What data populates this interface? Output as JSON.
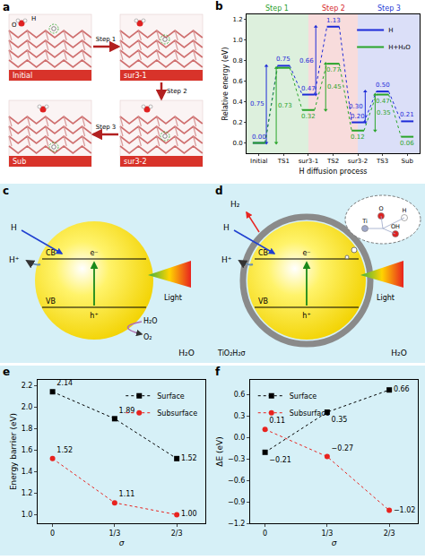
{
  "chart_data": [
    {
      "panel": "b",
      "type": "line",
      "categories": [
        "Initial",
        "TS1",
        "sur3-1",
        "TS2",
        "sur3-2",
        "TS3",
        "Sub"
      ],
      "xlabel": "H diffusion process",
      "ylabel": "Relative energy (eV)",
      "ylim": [
        -0.1,
        1.25
      ],
      "yticks": [
        {
          "value": 0,
          "label": "0.0"
        },
        0.2,
        0.4,
        0.6,
        0.8,
        {
          "value": 1,
          "label": "1.0"
        },
        1.2
      ],
      "grid": false,
      "legend": "top right",
      "data_labels": true,
      "steps": [
        {
          "label": "Step 1",
          "from": "Initial",
          "to": "sur3-1",
          "color": "#2ca02c"
        },
        {
          "label": "Step 2",
          "from": "sur3-1",
          "to": "sur3-2",
          "color": "#d62728"
        },
        {
          "label": "Step 3",
          "from": "sur3-2",
          "to": "Sub",
          "color": "#1f3bd6"
        }
      ],
      "series": [
        {
          "name": "H",
          "color": "#1d2bd8",
          "values": [
            0,
            0.75,
            0.47,
            1.13,
            0.2,
            0.5,
            0.21
          ],
          "value_labels": [
            "0.00",
            "0.75",
            "0.47",
            "1.13",
            "0.20",
            "0.50",
            "0.21"
          ],
          "barriers": [
            {
              "from": "Initial",
              "to": "TS1",
              "value": 0.75,
              "label": "0.75"
            },
            {
              "from": "sur3-1",
              "to": "TS2",
              "value": 0.66,
              "label": "0.66"
            },
            {
              "from": "sur3-2",
              "to": "TS3",
              "value": 0.3,
              "label": "0.30"
            }
          ]
        },
        {
          "name": "H+H₂O",
          "color": "#2aa52a",
          "values": [
            0,
            0.73,
            0.32,
            0.77,
            0.12,
            0.47,
            0.06
          ],
          "value_labels": [
            null,
            null,
            "0.32",
            "0.77",
            "0.12",
            "0.47",
            "0.06"
          ],
          "barriers": [
            {
              "from": "Initial",
              "to": "TS1",
              "value": 0.73,
              "label": "0.73"
            },
            {
              "from": "sur3-1",
              "to": "TS2",
              "value": 0.45,
              "label": "0.45"
            },
            {
              "from": "sur3-2",
              "to": "TS3",
              "value": 0.35,
              "label": "0.35"
            }
          ]
        }
      ]
    },
    {
      "panel": "e",
      "type": "line",
      "x": [
        0,
        0.3333,
        0.6667
      ],
      "xlabel": "σ",
      "ylabel": "Energy barrier (eV)",
      "xlim": [
        -0.08,
        0.82
      ],
      "xticks": [
        0,
        {
          "value": 0.3333,
          "label": "1/3"
        },
        {
          "value": 0.6667,
          "label": "2/3"
        }
      ],
      "ylim": [
        0.92,
        2.25
      ],
      "yticks": [
        {
          "value": 1,
          "label": "1.0"
        },
        1.2,
        1.4,
        1.6,
        1.8,
        {
          "value": 2,
          "label": "2.0"
        },
        2.2
      ],
      "grid": false,
      "legend": "top right",
      "data_labels": true,
      "series": [
        {
          "name": "Surface",
          "color": "#000000",
          "marker": "square",
          "line_style": "dot",
          "values": [
            2.14,
            1.89,
            1.52
          ],
          "value_labels": [
            "2.14",
            "1.89",
            "1.52"
          ]
        },
        {
          "name": "Subsurface",
          "color": "#e8231f",
          "marker": "circle",
          "line_style": "dot",
          "values": [
            1.52,
            1.11,
            1.0
          ],
          "value_labels": [
            "1.52",
            "1.11",
            "1.00"
          ]
        }
      ]
    },
    {
      "panel": "f",
      "type": "line",
      "x": [
        0,
        0.3333,
        0.6667
      ],
      "xlabel": "σ",
      "ylabel": "ΔE (eV)",
      "xlim": [
        -0.08,
        0.82
      ],
      "xticks": [
        0,
        {
          "value": 0.3333,
          "label": "1/3"
        },
        {
          "value": 0.6667,
          "label": "2/3"
        }
      ],
      "ylim": [
        -1.2,
        0.8
      ],
      "yticks": [
        {
          "value": -1.2,
          "label": "−1.2"
        },
        {
          "value": -0.9,
          "label": "−0.9"
        },
        {
          "value": -0.6,
          "label": "−0.6"
        },
        {
          "value": -0.3,
          "label": "−0.3"
        },
        {
          "value": 0,
          "label": "0.0"
        },
        0.3,
        0.6
      ],
      "grid": false,
      "legend": "top left",
      "data_labels": true,
      "series": [
        {
          "name": "Surface",
          "color": "#000000",
          "marker": "square",
          "line_style": "dot",
          "values": [
            -0.21,
            0.35,
            0.66
          ],
          "value_labels": [
            "−0.21",
            "0.35",
            "0.66"
          ]
        },
        {
          "name": "Subsurface",
          "color": "#e8231f",
          "marker": "circle",
          "line_style": "dot",
          "values": [
            0.11,
            -0.27,
            -1.02
          ],
          "value_labels": [
            "0.11",
            "−0.27",
            "−1.02"
          ]
        }
      ]
    }
  ],
  "diagrams": {
    "a": {
      "letter": "a",
      "states": [
        "Initial",
        "sur3-1",
        "sur3-2",
        "Sub"
      ],
      "steps": [
        "Step 1",
        "Step 2",
        "Step 3"
      ],
      "atoms": [
        "O",
        "H"
      ]
    },
    "c": {
      "letter": "c",
      "bands": [
        "CB",
        "VB"
      ],
      "electron": "e⁻",
      "hole": "h⁺",
      "reactant_top": "H",
      "product_top": "H⁺",
      "light": "Light",
      "reactant_bottom": "H₂O",
      "product_bottom": "O₂",
      "medium": "H₂O"
    },
    "d": {
      "letter": "d",
      "bands": [
        "CB",
        "VB"
      ],
      "electron": "e⁻",
      "hole": "h⁺",
      "reactant_top": "H",
      "product_top": "H⁺",
      "product_gas": "H₂",
      "light": "Light",
      "shell": "TiO₂H₂σ",
      "inset_atoms": [
        "Ti",
        "O",
        "OH",
        "H"
      ],
      "medium": "H₂O"
    }
  }
}
